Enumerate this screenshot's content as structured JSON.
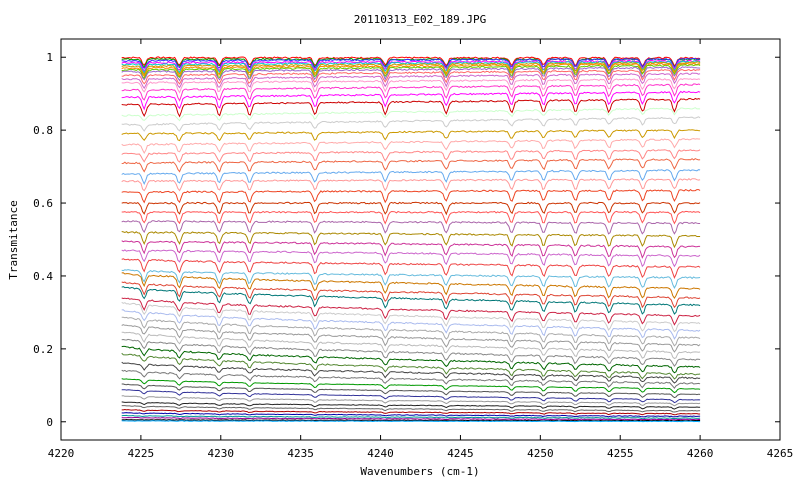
{
  "chart_data": {
    "type": "line",
    "title": "20110313_E02_189.JPG",
    "xlabel": "Wavenumbers (cm-1)",
    "ylabel": "Transmitance",
    "xlim": [
      4220,
      4265
    ],
    "ylim": [
      -0.05,
      1.05
    ],
    "x_ticks": [
      4220,
      4225,
      4230,
      4235,
      4240,
      4245,
      4250,
      4255,
      4260,
      4265
    ],
    "y_ticks": [
      0,
      0.2,
      0.4,
      0.6,
      0.8,
      1
    ],
    "x_tick_labels": [
      "4220",
      "4225",
      "4230",
      "4235",
      "4240",
      "4245",
      "4250",
      "4255",
      "4260",
      "4265"
    ],
    "y_tick_labels": [
      "0",
      "0.2",
      "0.4",
      "0.6",
      "0.8",
      "1"
    ],
    "grid": false,
    "legend": "none",
    "x_range": [
      4223.8,
      4260
    ],
    "absorption_lines": [
      4225.2,
      4227.4,
      4229.9,
      4231.8,
      4235.9,
      4240.3,
      4244.1,
      4248.2,
      4250.2,
      4252.2,
      4254.3,
      4256.4,
      4258.4
    ],
    "series": [
      {
        "values": [
          0.999,
          0.998
        ],
        "color": "#ff0000"
      },
      {
        "values": [
          0.995,
          0.994
        ],
        "color": "#00a000"
      },
      {
        "values": [
          0.99,
          0.995
        ],
        "color": "#3333ff"
      },
      {
        "values": [
          0.985,
          0.99
        ],
        "color": "#ff00ff"
      },
      {
        "values": [
          0.98,
          0.988
        ],
        "color": "#00cccc"
      },
      {
        "values": [
          0.975,
          0.985
        ],
        "color": "#cc9900"
      },
      {
        "values": [
          0.97,
          0.982
        ],
        "color": "#ff8800"
      },
      {
        "values": [
          0.965,
          0.978
        ],
        "color": "#66cc00"
      },
      {
        "values": [
          0.96,
          0.972
        ],
        "color": "#9966cc"
      },
      {
        "values": [
          0.95,
          0.965
        ],
        "color": "#ff6666"
      },
      {
        "values": [
          0.94,
          0.955
        ],
        "color": "#cc66cc"
      },
      {
        "values": [
          0.93,
          0.94
        ],
        "color": "#ff99cc"
      },
      {
        "values": [
          0.91,
          0.925
        ],
        "color": "#ff33cc"
      },
      {
        "values": [
          0.89,
          0.905
        ],
        "color": "#ff00ff"
      },
      {
        "values": [
          0.87,
          0.885
        ],
        "color": "#cc0000"
      },
      {
        "values": [
          0.84,
          0.86
        ],
        "color": "#ccffcc"
      },
      {
        "values": [
          0.815,
          0.835
        ],
        "color": "#cccccc"
      },
      {
        "values": [
          0.79,
          0.8
        ],
        "color": "#cc9900"
      },
      {
        "values": [
          0.76,
          0.775
        ],
        "color": "#ffaaaa"
      },
      {
        "values": [
          0.735,
          0.745
        ],
        "color": "#ff8888"
      },
      {
        "values": [
          0.71,
          0.72
        ],
        "color": "#ee6644"
      },
      {
        "values": [
          0.68,
          0.69
        ],
        "color": "#66aaee"
      },
      {
        "values": [
          0.66,
          0.665
        ],
        "color": "#ff9999"
      },
      {
        "values": [
          0.63,
          0.635
        ],
        "color": "#ee4422"
      },
      {
        "values": [
          0.6,
          0.6
        ],
        "color": "#cc3300"
      },
      {
        "values": [
          0.575,
          0.575
        ],
        "color": "#ff5555"
      },
      {
        "values": [
          0.55,
          0.545
        ],
        "color": "#aa66aa"
      },
      {
        "values": [
          0.52,
          0.51
        ],
        "color": "#aa8800"
      },
      {
        "values": [
          0.495,
          0.48
        ],
        "color": "#cc3399"
      },
      {
        "values": [
          0.47,
          0.455
        ],
        "color": "#cc66cc"
      },
      {
        "values": [
          0.44,
          0.425
        ],
        "color": "#ee4444"
      },
      {
        "values": [
          0.41,
          0.395
        ],
        "color": "#66bbdd"
      },
      {
        "values": [
          0.395,
          0.365
        ],
        "color": "#cc7700"
      },
      {
        "values": [
          0.37,
          0.34
        ],
        "color": "#dd4433"
      },
      {
        "values": [
          0.355,
          0.32
        ],
        "color": "#007777"
      },
      {
        "values": [
          0.325,
          0.29
        ],
        "color": "#cc2244"
      },
      {
        "values": [
          0.31,
          0.27
        ],
        "color": "#cccccc"
      },
      {
        "values": [
          0.29,
          0.25
        ],
        "color": "#aabbee"
      },
      {
        "values": [
          0.27,
          0.23
        ],
        "color": "#aaaaaa"
      },
      {
        "values": [
          0.25,
          0.21
        ],
        "color": "#999999"
      },
      {
        "values": [
          0.23,
          0.19
        ],
        "color": "#bbbbbb"
      },
      {
        "values": [
          0.21,
          0.17
        ],
        "color": "#888888"
      },
      {
        "values": [
          0.19,
          0.15
        ],
        "color": "#006600"
      },
      {
        "values": [
          0.17,
          0.13
        ],
        "color": "#558833"
      },
      {
        "values": [
          0.15,
          0.12
        ],
        "color": "#444444"
      },
      {
        "values": [
          0.13,
          0.105
        ],
        "color": "#777777"
      },
      {
        "values": [
          0.11,
          0.09
        ],
        "color": "#009900"
      },
      {
        "values": [
          0.095,
          0.075
        ],
        "color": "#555555"
      },
      {
        "values": [
          0.08,
          0.06
        ],
        "color": "#333399"
      },
      {
        "values": [
          0.065,
          0.05
        ],
        "color": "#999999"
      },
      {
        "values": [
          0.05,
          0.04
        ],
        "color": "#222222"
      },
      {
        "values": [
          0.04,
          0.03
        ],
        "color": "#666666"
      },
      {
        "values": [
          0.03,
          0.022
        ],
        "color": "#aa0000"
      },
      {
        "values": [
          0.022,
          0.015
        ],
        "color": "#0000aa"
      },
      {
        "values": [
          0.015,
          0.01
        ],
        "color": "#009999"
      },
      {
        "values": [
          0.01,
          0.006
        ],
        "color": "#990099"
      },
      {
        "values": [
          0.005,
          0.003
        ],
        "color": "#000000"
      },
      {
        "values": [
          0.002,
          0.001
        ],
        "color": "#00aaff"
      }
    ]
  }
}
